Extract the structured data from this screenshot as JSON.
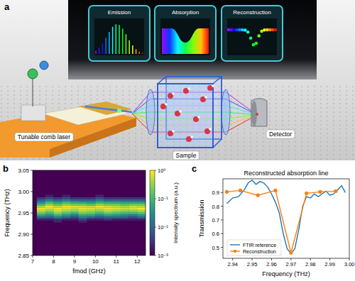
{
  "diagram": {
    "panel_label": "a",
    "insets": [
      "Emission",
      "Absorption",
      "Reconstruction"
    ],
    "components": [
      "Tunable comb laser",
      "Sample",
      "Detector"
    ]
  },
  "chart_data": [
    {
      "type": "heatmap",
      "panel_label": "b",
      "x_label": "fmod (GHz)",
      "y_label": "Frequency (THz)",
      "x": [
        7.4,
        7.8,
        8.2,
        8.6,
        9.0,
        9.4,
        9.8,
        10.2,
        10.6,
        11.0,
        11.4,
        11.8,
        12.2
      ],
      "y": [
        2.93,
        2.935,
        2.94,
        2.945,
        2.95,
        2.955,
        2.96,
        2.965,
        2.97,
        2.975,
        2.98,
        2.985,
        2.99
      ],
      "cells": [
        [
          0.001,
          0.001,
          0.002,
          0.001,
          0.001,
          0.002,
          0.001,
          0.001,
          0.001,
          0.001,
          0.001,
          0.001,
          0.001
        ],
        [
          0.002,
          0.002,
          0.003,
          0.002,
          0.002,
          0.004,
          0.002,
          0.002,
          0.003,
          0.002,
          0.002,
          0.002,
          0.002
        ],
        [
          0.01,
          0.008,
          0.02,
          0.01,
          0.005,
          0.02,
          0.01,
          0.006,
          0.01,
          0.01,
          0.008,
          0.005,
          0.01
        ],
        [
          0.05,
          0.03,
          0.08,
          0.04,
          0.02,
          0.06,
          0.05,
          0.03,
          0.05,
          0.04,
          0.03,
          0.02,
          0.04
        ],
        [
          0.2,
          0.1,
          0.3,
          0.15,
          0.08,
          0.25,
          0.2,
          0.1,
          0.2,
          0.15,
          0.1,
          0.1,
          0.15
        ],
        [
          0.5,
          0.3,
          0.6,
          0.4,
          0.3,
          0.5,
          0.4,
          0.3,
          0.5,
          0.4,
          0.3,
          0.3,
          0.4
        ],
        [
          0.8,
          0.6,
          0.9,
          0.7,
          0.5,
          0.8,
          0.7,
          0.6,
          0.8,
          0.7,
          0.6,
          0.7,
          1.0
        ],
        [
          0.4,
          0.9,
          0.5,
          0.8,
          0.7,
          0.6,
          0.5,
          0.8,
          0.6,
          0.5,
          0.4,
          0.6,
          0.5
        ],
        [
          0.1,
          0.3,
          0.15,
          0.3,
          0.2,
          0.2,
          0.15,
          0.3,
          0.2,
          0.2,
          0.15,
          0.2,
          0.2
        ],
        [
          0.03,
          0.1,
          0.05,
          0.1,
          0.06,
          0.05,
          0.04,
          0.08,
          0.06,
          0.06,
          0.05,
          0.05,
          0.05
        ],
        [
          0.008,
          0.02,
          0.01,
          0.02,
          0.01,
          0.01,
          0.01,
          0.02,
          0.01,
          0.01,
          0.01,
          0.01,
          0.01
        ],
        [
          0.003,
          0.005,
          0.003,
          0.005,
          0.003,
          0.003,
          0.003,
          0.005,
          0.003,
          0.003,
          0.003,
          0.003,
          0.003
        ],
        [
          0.001,
          0.002,
          0.001,
          0.002,
          0.001,
          0.001,
          0.001,
          0.002,
          0.001,
          0.001,
          0.001,
          0.001,
          0.001
        ]
      ],
      "xlim": [
        7,
        12.4
      ],
      "ylim": [
        2.85,
        3.05
      ],
      "xticks": [
        7,
        8,
        9,
        10,
        11,
        12
      ],
      "yticks": [
        2.85,
        {
          "value": 2.9,
          "label": "2.90"
        },
        2.95,
        {
          "value": 3,
          "label": "3.00"
        },
        3.05
      ],
      "colorbar": {
        "label": "Intensity spectrum (a.u.)",
        "range": [
          0.001,
          1
        ],
        "log": true,
        "ticks": [
          {
            "value": 1,
            "label": "10⁰"
          },
          {
            "value": 0.1,
            "label": "10⁻¹"
          },
          {
            "value": 0.01,
            "label": "10⁻²"
          },
          {
            "value": 0.001,
            "label": "10⁻³"
          }
        ]
      }
    },
    {
      "type": "line",
      "panel_label": "c",
      "title": "Reconstructed absorption line",
      "x_label": "Frequency (THz)",
      "y_label": "Transmission",
      "series": [
        {
          "name": "FTIR reference",
          "color": "#1f77b4",
          "x": [
            2.937,
            2.94,
            2.943,
            2.946,
            2.948,
            2.95,
            2.952,
            2.954,
            2.956,
            2.958,
            2.96,
            2.962,
            2.964,
            2.966,
            2.968,
            2.97,
            2.972,
            2.974,
            2.976,
            2.978,
            2.98,
            2.982,
            2.984,
            2.986,
            2.988,
            2.99,
            2.992,
            2.994,
            2.996,
            2.998
          ],
          "values": [
            0.82,
            0.86,
            0.87,
            0.92,
            0.97,
            0.99,
            0.96,
            0.98,
            0.97,
            0.94,
            0.89,
            0.83,
            0.75,
            0.6,
            0.49,
            0.455,
            0.49,
            0.63,
            0.8,
            0.87,
            0.86,
            0.89,
            0.87,
            0.89,
            0.91,
            0.88,
            0.89,
            0.92,
            0.95,
            0.9
          ]
        },
        {
          "name": "Reconstruction",
          "color": "#ff7f0e",
          "marker": "circle",
          "x": [
            2.937,
            2.944,
            2.953,
            2.962,
            2.97,
            2.978,
            2.985,
            2.993
          ],
          "values": [
            0.905,
            0.915,
            0.88,
            0.915,
            0.46,
            0.895,
            0.905,
            0.91
          ]
        }
      ],
      "xlim": [
        2.935,
        3.0
      ],
      "ylim": [
        0.42,
        1.0
      ],
      "xticks": [
        2.94,
        2.95,
        2.96,
        2.97,
        2.98,
        2.99,
        {
          "value": 3,
          "label": "3.00"
        }
      ],
      "yticks": [
        0.5,
        0.6,
        0.7,
        0.8,
        0.9
      ],
      "legend": "lower left"
    }
  ]
}
